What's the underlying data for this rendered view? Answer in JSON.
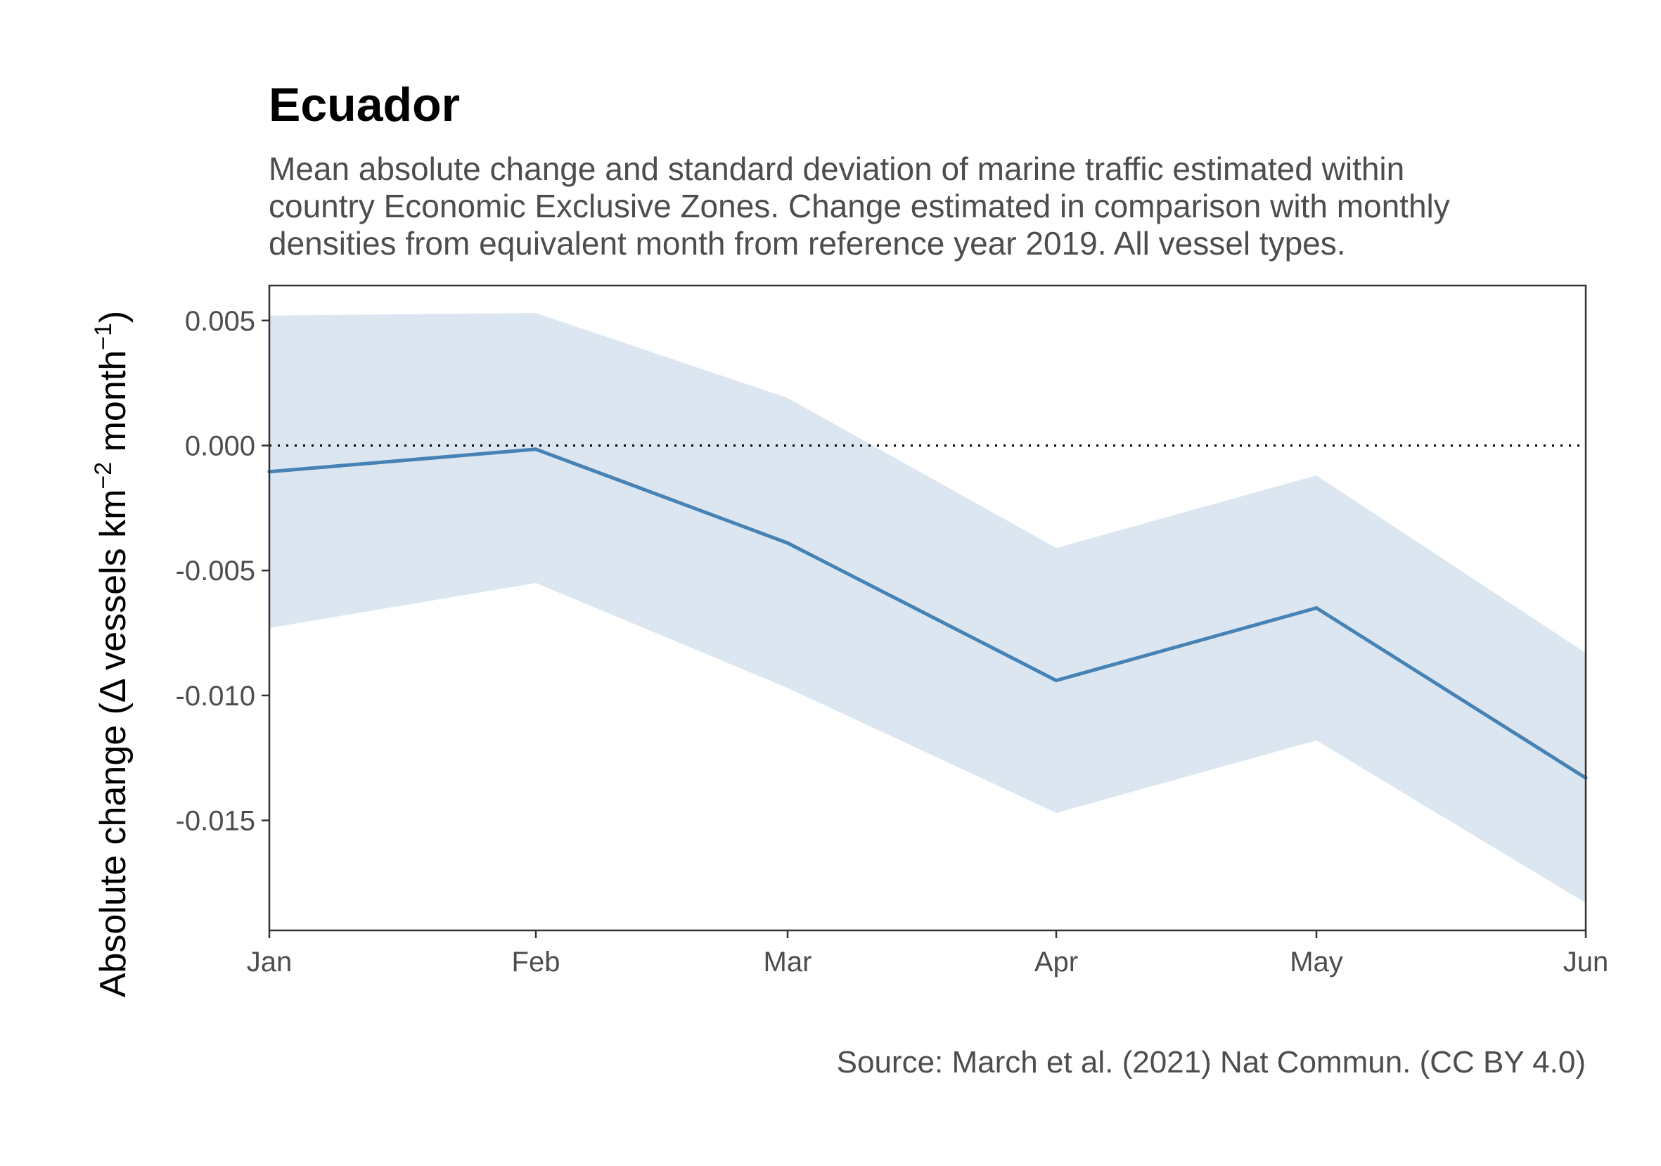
{
  "chart_data": {
    "type": "line",
    "title": "Ecuador",
    "subtitle_lines": [
      "Mean absolute change and standard deviation of marine traffic estimated within",
      "country Economic Exclusive Zones. Change estimated in comparison with monthly",
      "densities from equivalent month from reference year 2019. All vessel types."
    ],
    "xlabel": "",
    "ylabel": {
      "prefix": "Absolute change (",
      "delta": "Δ",
      "text1": " vessels km",
      "sup1": "−2",
      "text2": " month",
      "sup2": "−1",
      "suffix": ")"
    },
    "caption": "Source: March et al. (2021) Nat Commun. (CC BY 4.0)",
    "categories": [
      "Jan",
      "Feb",
      "Mar",
      "Apr",
      "May",
      "Jun"
    ],
    "series": [
      {
        "values": [
          -0.00105,
          -0.00015,
          -0.0039,
          -0.0094,
          -0.0065,
          -0.0133
        ],
        "sd_upper": [
          0.0052,
          0.0053,
          0.0019,
          -0.0041,
          -0.0012,
          -0.0083
        ],
        "sd_lower": [
          -0.0073,
          -0.0055,
          -0.0097,
          -0.0147,
          -0.0118,
          -0.0183
        ]
      }
    ],
    "yticks": [
      0.005,
      0.0,
      -0.005,
      -0.01,
      -0.015
    ],
    "ytick_labels": [
      "0.005",
      "0.000",
      "-0.005",
      "-0.010",
      "-0.015"
    ],
    "ylim": [
      -0.0194,
      0.0064
    ],
    "reference_line": 0,
    "grid": false,
    "legend": "none",
    "colors": {
      "line": "#4682b4",
      "band": "#dbe6f1",
      "frame": "#333333",
      "reference": "#000000"
    }
  }
}
